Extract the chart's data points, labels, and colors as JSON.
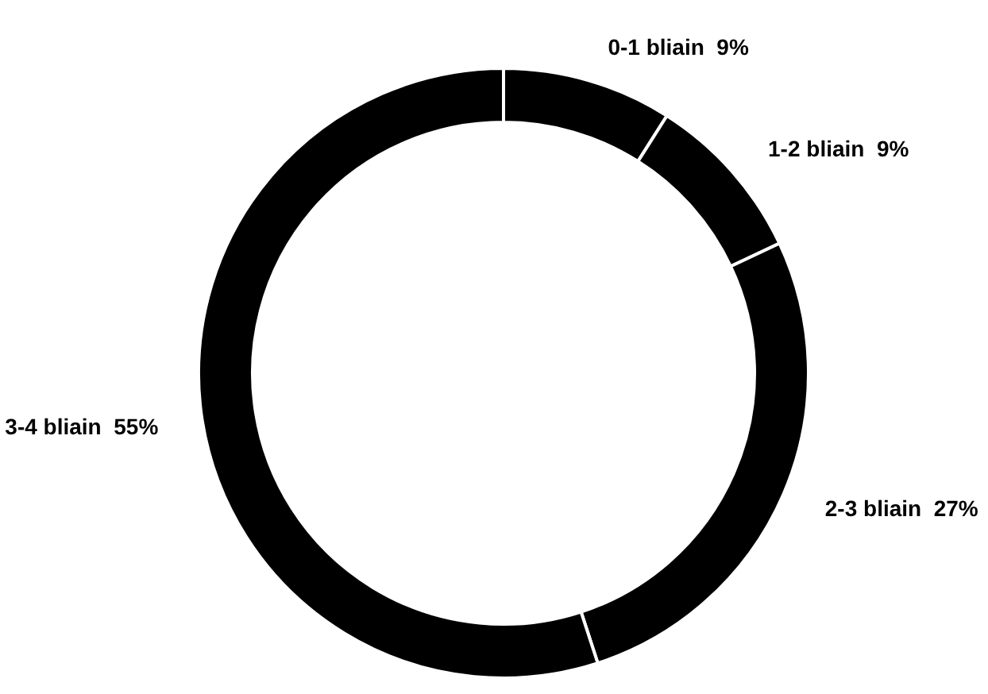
{
  "chart_data": {
    "type": "donut",
    "categories": [
      "0-1 bliain",
      "1-2 bliain",
      "2-3 bliain",
      "3-4 bliain"
    ],
    "values": [
      9,
      9,
      27,
      55
    ],
    "value_labels": [
      "9%",
      "9%",
      "27%",
      "55%"
    ],
    "colors": [
      "#000000",
      "#000000",
      "#000000",
      "#000000"
    ]
  }
}
